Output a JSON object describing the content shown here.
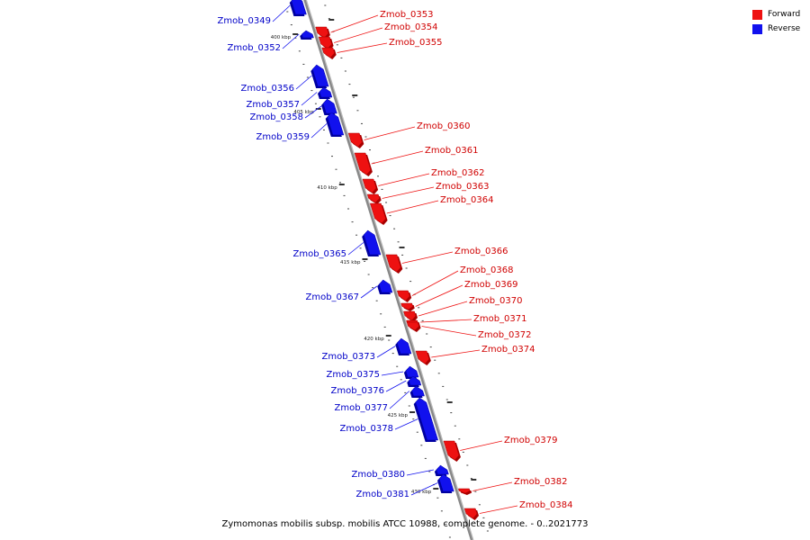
{
  "legend": [
    {
      "label": "Forward",
      "color": "#ee1111"
    },
    {
      "label": "Reverse",
      "color": "#1111ee"
    }
  ],
  "colors": {
    "forward": "#ee1111",
    "forward_dark": "#a80000",
    "reverse": "#1111ee",
    "reverse_dark": "#0000a0",
    "axis": "#888888",
    "label_forward": "#d00000",
    "label_reverse": "#0000c8"
  },
  "caption": "Zymomonas mobilis subsp. mobilis ATCC 10988, complete genome. - 0..2021773",
  "genes": [
    {
      "label": "Zmob_0349",
      "strand": "reverse"
    },
    {
      "label": "Zmob_0352",
      "strand": "reverse"
    },
    {
      "label": "Zmob_0353",
      "strand": "forward"
    },
    {
      "label": "Zmob_0354",
      "strand": "forward"
    },
    {
      "label": "Zmob_0355",
      "strand": "forward"
    },
    {
      "label": "Zmob_0356",
      "strand": "reverse"
    },
    {
      "label": "Zmob_0357",
      "strand": "reverse"
    },
    {
      "label": "Zmob_0358",
      "strand": "reverse"
    },
    {
      "label": "Zmob_0359",
      "strand": "reverse"
    },
    {
      "label": "Zmob_0360",
      "strand": "forward"
    },
    {
      "label": "Zmob_0361",
      "strand": "forward"
    },
    {
      "label": "Zmob_0362",
      "strand": "forward"
    },
    {
      "label": "Zmob_0363",
      "strand": "forward"
    },
    {
      "label": "Zmob_0364",
      "strand": "forward"
    },
    {
      "label": "Zmob_0365",
      "strand": "reverse"
    },
    {
      "label": "Zmob_0366",
      "strand": "forward"
    },
    {
      "label": "Zmob_0367",
      "strand": "reverse"
    },
    {
      "label": "Zmob_0368",
      "strand": "forward"
    },
    {
      "label": "Zmob_0369",
      "strand": "forward"
    },
    {
      "label": "Zmob_0370",
      "strand": "forward"
    },
    {
      "label": "Zmob_0371",
      "strand": "forward"
    },
    {
      "label": "Zmob_0372",
      "strand": "forward"
    },
    {
      "label": "Zmob_0373",
      "strand": "reverse"
    },
    {
      "label": "Zmob_0374",
      "strand": "forward"
    },
    {
      "label": "Zmob_0375",
      "strand": "reverse"
    },
    {
      "label": "Zmob_0376",
      "strand": "reverse"
    },
    {
      "label": "Zmob_0377",
      "strand": "reverse"
    },
    {
      "label": "Zmob_0378",
      "strand": "reverse"
    },
    {
      "label": "Zmob_0379",
      "strand": "forward"
    },
    {
      "label": "Zmob_0380",
      "strand": "reverse"
    },
    {
      "label": "Zmob_0381",
      "strand": "reverse"
    },
    {
      "label": "Zmob_0382",
      "strand": "forward"
    },
    {
      "label": "Zmob_0384",
      "strand": "forward"
    }
  ],
  "ticks": [
    "400 kbp",
    "405 kbp",
    "410 kbp",
    "415 kbp",
    "420 kbp",
    "425 kbp",
    "430 kbp"
  ]
}
